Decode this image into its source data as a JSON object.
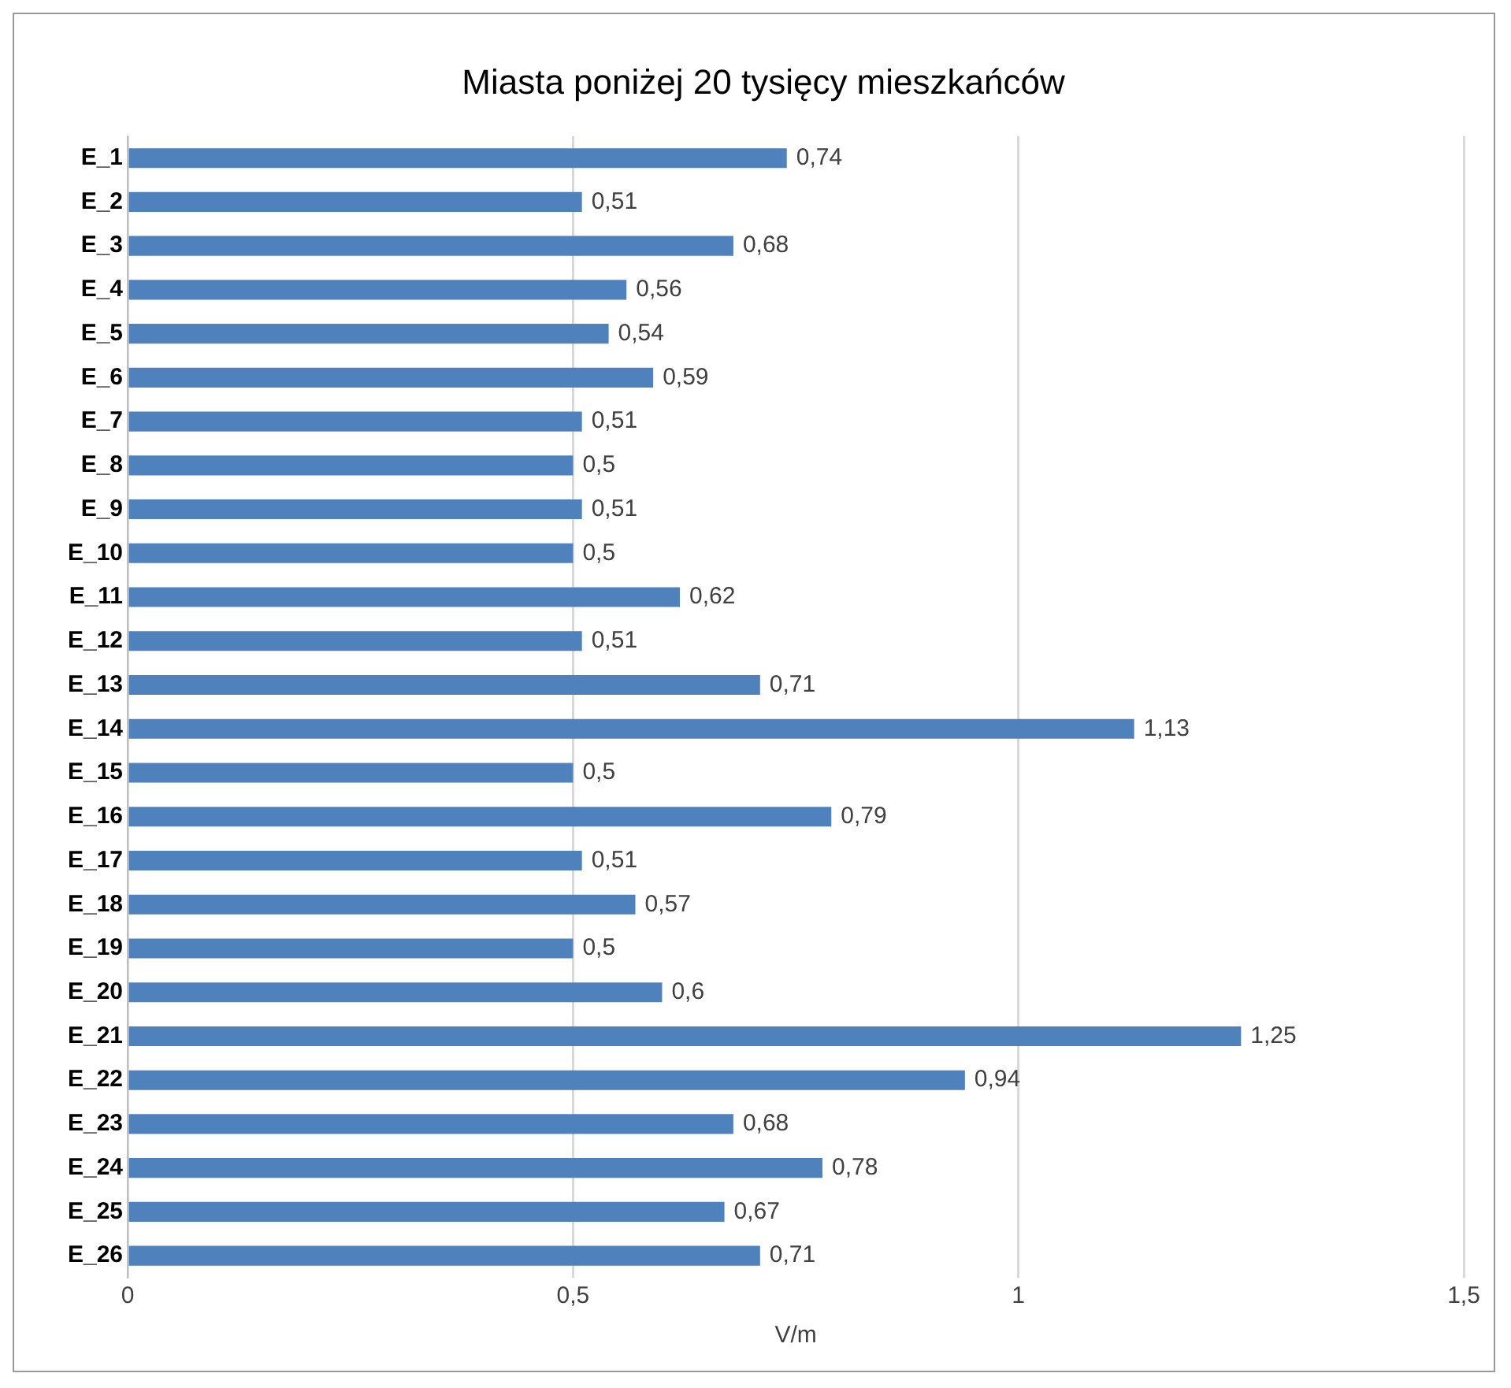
{
  "chart_data": {
    "type": "bar",
    "orientation": "horizontal",
    "title": "Miasta poniżej 20 tysięcy mieszkańców",
    "xlabel": "V/m",
    "categories": [
      "E_1",
      "E_2",
      "E_3",
      "E_4",
      "E_5",
      "E_6",
      "E_7",
      "E_8",
      "E_9",
      "E_10",
      "E_11",
      "E_12",
      "E_13",
      "E_14",
      "E_15",
      "E_16",
      "E_17",
      "E_18",
      "E_19",
      "E_20",
      "E_21",
      "E_22",
      "E_23",
      "E_24",
      "E_25",
      "E_26"
    ],
    "values": [
      0.74,
      0.51,
      0.68,
      0.56,
      0.54,
      0.59,
      0.51,
      0.5,
      0.51,
      0.5,
      0.62,
      0.51,
      0.71,
      1.13,
      0.5,
      0.79,
      0.51,
      0.57,
      0.5,
      0.6,
      1.25,
      0.94,
      0.68,
      0.78,
      0.67,
      0.71
    ],
    "value_labels": [
      "0,74",
      "0,51",
      "0,68",
      "0,56",
      "0,54",
      "0,59",
      "0,51",
      "0,5",
      "0,51",
      "0,5",
      "0,62",
      "0,51",
      "0,71",
      "1,13",
      "0,5",
      "0,79",
      "0,51",
      "0,57",
      "0,5",
      "0,6",
      "1,25",
      "0,94",
      "0,68",
      "0,78",
      "0,67",
      "0,71"
    ],
    "color": "#4f81bd",
    "xlim": [
      0,
      1.5
    ],
    "xticks": [
      0,
      {
        "value": 0.5,
        "label": "0,5"
      },
      1,
      {
        "value": 1.5,
        "label": "1,5"
      }
    ],
    "grid": "x",
    "legend": false
  }
}
